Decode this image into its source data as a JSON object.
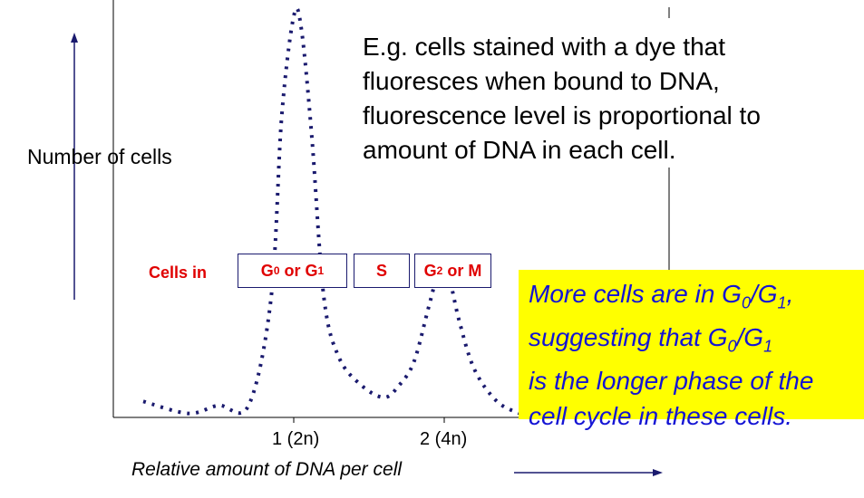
{
  "colors": {
    "curve": "#1a1a6e",
    "phase_text": "#e00000",
    "callout_bg": "#ffff00",
    "callout_text": "#1414d4"
  },
  "axes": {
    "ylabel": "Number of cells",
    "xlabel": "Relative amount of DNA per cell",
    "xticks": [
      "1 (2n)",
      "2 (4n)"
    ]
  },
  "description": {
    "lines": [
      "E.g. cells stained with a dye that",
      "fluoresces when bound to DNA,",
      "fluorescence level is proportional to",
      "amount of DNA in each cell."
    ]
  },
  "phases": {
    "label": "Cells in",
    "g0g1": {
      "g": "G",
      "sub0": "0",
      "or": " or G",
      "sub1": "1"
    },
    "s": "S",
    "g2m": {
      "g": "G",
      "sub": "2",
      "or": " or M"
    }
  },
  "callout": {
    "l1a": "More cells are in G",
    "l1s0": "0",
    "l1b": "/G",
    "l1s1": "1",
    "l1c": ",",
    "l2a": "suggesting that G",
    "l2s0": "0",
    "l2b": "/G",
    "l2s1": "1",
    "l3": "is the longer phase of the",
    "l4": "cell cycle in these cells."
  },
  "chart_data": {
    "type": "line",
    "x": [
      0.0,
      0.3,
      0.5,
      0.7,
      0.85,
      0.92,
      1.0,
      1.05,
      1.12,
      1.2,
      1.3,
      1.45,
      1.6,
      1.7,
      1.8,
      1.9,
      1.97,
      2.03,
      2.1,
      2.2,
      2.35,
      2.5
    ],
    "values": [
      0.04,
      0.01,
      0.03,
      0.03,
      0.3,
      0.75,
      1.0,
      0.97,
      0.7,
      0.3,
      0.15,
      0.08,
      0.05,
      0.08,
      0.14,
      0.28,
      0.37,
      0.35,
      0.24,
      0.12,
      0.04,
      0.01
    ],
    "xticks": [
      1,
      2
    ],
    "xlim": [
      -0.5,
      2.5
    ],
    "ylim": [
      0,
      1
    ],
    "grid": false
  }
}
